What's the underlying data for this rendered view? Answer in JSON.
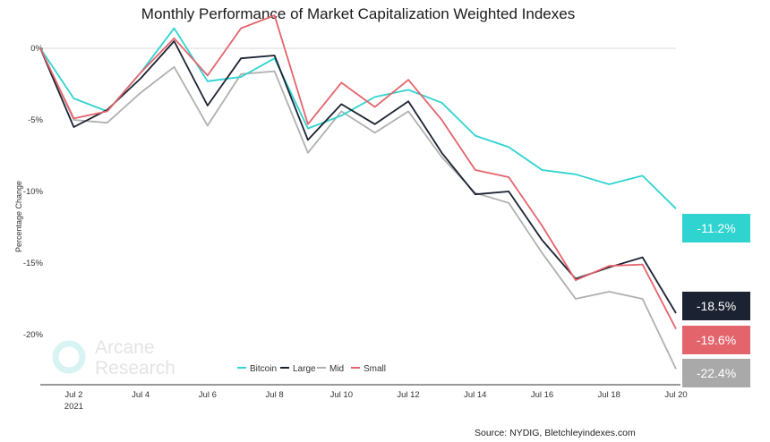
{
  "chart_data": {
    "type": "line",
    "title": "Monthly Performance of Market Capitalization Weighted Indexes",
    "ylabel": "Percentage Change",
    "xlabel": "",
    "x": [
      "Jul 1",
      "Jul 2",
      "Jul 3",
      "Jul 4",
      "Jul 5",
      "Jul 6",
      "Jul 7",
      "Jul 8",
      "Jul 9",
      "Jul 10",
      "Jul 11",
      "Jul 12",
      "Jul 13",
      "Jul 14",
      "Jul 15",
      "Jul 16",
      "Jul 17",
      "Jul 18",
      "Jul 19",
      "Jul 20"
    ],
    "x_tick_labels": [
      "Jul 2",
      "Jul 4",
      "Jul 6",
      "Jul 8",
      "Jul 10",
      "Jul 12",
      "Jul 14",
      "Jul 16",
      "Jul 18",
      "Jul 20"
    ],
    "x_tick_sublabel": "2021",
    "y_tick_labels": [
      "0%",
      "-5%",
      "-10%",
      "-15%",
      "-20%"
    ],
    "ylim": [
      -23.5,
      1.5
    ],
    "legend_position": "bottom-left",
    "series": [
      {
        "name": "Bitcoin",
        "color": "#2fd3d0",
        "values": [
          0,
          -3.5,
          -4.4,
          -1.7,
          1.4,
          -2.3,
          -2.0,
          -0.7,
          -5.6,
          -4.7,
          -3.4,
          -2.9,
          -3.8,
          -6.1,
          -6.9,
          -8.5,
          -8.8,
          -9.5,
          -8.9,
          -11.2
        ]
      },
      {
        "name": "Large",
        "color": "#1b2232",
        "values": [
          0,
          -5.5,
          -4.3,
          -2.1,
          0.5,
          -4.0,
          -0.7,
          -0.5,
          -6.4,
          -3.9,
          -5.3,
          -3.7,
          -7.3,
          -10.2,
          -10.0,
          -13.4,
          -16.1,
          -15.3,
          -14.6,
          -18.5
        ]
      },
      {
        "name": "Mid",
        "color": "#b0b0b0",
        "values": [
          0,
          -5.0,
          -5.2,
          -3.1,
          -1.3,
          -5.4,
          -1.8,
          -1.6,
          -7.3,
          -4.4,
          -5.9,
          -4.4,
          -7.6,
          -10.1,
          -10.8,
          -14.3,
          -17.5,
          -17.0,
          -17.5,
          -22.4
        ]
      },
      {
        "name": "Small",
        "color": "#e4646c",
        "values": [
          0,
          -4.9,
          -4.4,
          -1.7,
          0.7,
          -1.9,
          1.4,
          2.3,
          -5.3,
          -2.4,
          -4.1,
          -2.2,
          -5.0,
          -8.5,
          -9.0,
          -12.4,
          -16.2,
          -15.2,
          -15.1,
          -19.6
        ]
      }
    ],
    "end_badges": [
      {
        "label": "-11.2%",
        "color": "#2fd3d0"
      },
      {
        "label": "-18.5%",
        "color": "#1b2232"
      },
      {
        "label": "-19.6%",
        "color": "#e4646c"
      },
      {
        "label": "-22.4%",
        "color": "#a9a9a9"
      }
    ],
    "grid": false
  },
  "watermark": {
    "line1": "Arcane",
    "line2": "Research"
  },
  "source": "Source: NYDIG, Bletchleyindexes.com"
}
